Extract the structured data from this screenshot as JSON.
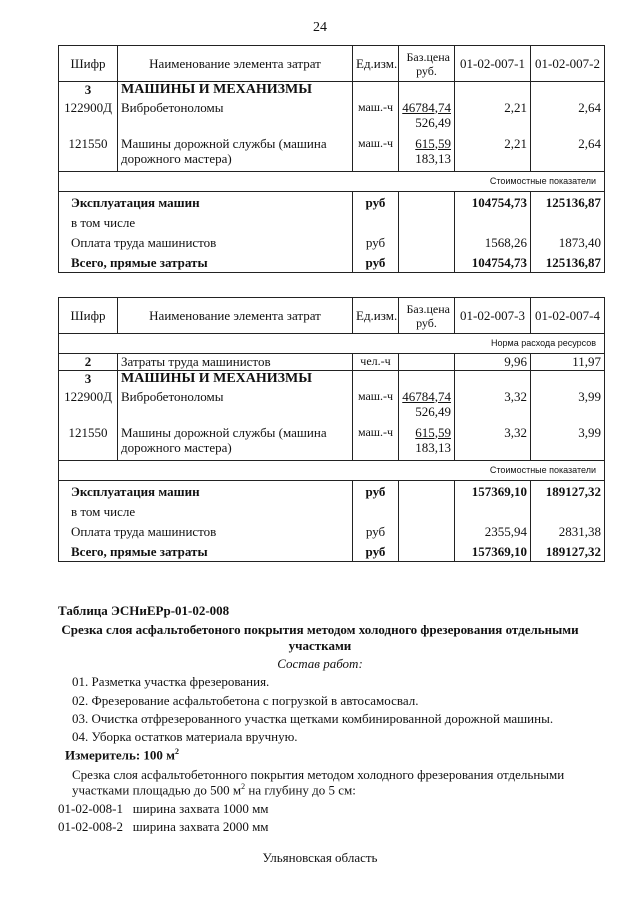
{
  "page_number": "24",
  "tables": [
    {
      "header": {
        "code": "Шифр",
        "name": "Наименование элемента затрат",
        "unit": "Ед.изм.",
        "price": "Баз.цена руб.",
        "cols": [
          "01-02-007-1",
          "01-02-007-2"
        ]
      },
      "rows": [
        {
          "type": "group",
          "code": "3",
          "name": "МАШИНЫ И МЕХАНИЗМЫ"
        },
        {
          "type": "item",
          "code": "122900Д",
          "name": "Вибробетоноломы",
          "unit": "маш.-ч",
          "price": "46784,74",
          "price2": "526,49",
          "v": [
            "2,21",
            "2,64"
          ]
        },
        {
          "type": "item",
          "code": "121550",
          "name": "Машины дорожной службы (машина дорожного мастера)",
          "unit": "маш.-ч",
          "price": "615,59",
          "price2": "183,13",
          "v": [
            "2,21",
            "2,64"
          ]
        },
        {
          "type": "section",
          "label": "Стоимостные показатели"
        },
        {
          "type": "total",
          "bold": true,
          "name": "Эксплуатация машин",
          "unit": "руб",
          "v": [
            "104754,73",
            "125136,87"
          ]
        },
        {
          "type": "total",
          "bold": false,
          "name": "в том числе",
          "unit": "",
          "v": [
            "",
            ""
          ]
        },
        {
          "type": "total",
          "bold": false,
          "name": "Оплата труда машинистов",
          "unit": "руб",
          "v": [
            "1568,26",
            "1873,40"
          ]
        },
        {
          "type": "total",
          "bold": true,
          "name": "Всего, прямые затраты",
          "unit": "руб",
          "v": [
            "104754,73",
            "125136,87"
          ]
        }
      ]
    },
    {
      "header": {
        "code": "Шифр",
        "name": "Наименование элемента затрат",
        "unit": "Ед.изм.",
        "price": "Баз.цена руб.",
        "cols": [
          "01-02-007-3",
          "01-02-007-4"
        ]
      },
      "rows": [
        {
          "type": "section",
          "label": "Норма расхода ресурсов"
        },
        {
          "type": "item",
          "single": true,
          "boldcode": true,
          "code": "2",
          "name": "Затраты труда машинистов",
          "unit": "чел.-ч",
          "price": "",
          "price2": "",
          "v": [
            "9,96",
            "11,97"
          ]
        },
        {
          "type": "group",
          "code": "3",
          "name": "МАШИНЫ И МЕХАНИЗМЫ"
        },
        {
          "type": "item",
          "code": "122900Д",
          "name": "Вибробетоноломы",
          "unit": "маш.-ч",
          "price": "46784,74",
          "price2": "526,49",
          "v": [
            "3,32",
            "3,99"
          ]
        },
        {
          "type": "item",
          "code": "121550",
          "name": "Машины дорожной службы (машина дорожного мастера)",
          "unit": "маш.-ч",
          "price": "615,59",
          "price2": "183,13",
          "v": [
            "3,32",
            "3,99"
          ]
        },
        {
          "type": "section",
          "label": "Стоимостные показатели"
        },
        {
          "type": "total",
          "bold": true,
          "name": "Эксплуатация машин",
          "unit": "руб",
          "v": [
            "157369,10",
            "189127,32"
          ]
        },
        {
          "type": "total",
          "bold": false,
          "name": "в том числе",
          "unit": "",
          "v": [
            "",
            ""
          ]
        },
        {
          "type": "total",
          "bold": false,
          "name": "Оплата труда машинистов",
          "unit": "руб",
          "v": [
            "2355,94",
            "2831,38"
          ]
        },
        {
          "type": "total",
          "bold": true,
          "name": "Всего, прямые затраты",
          "unit": "руб",
          "v": [
            "157369,10",
            "189127,32"
          ]
        }
      ]
    }
  ],
  "section": {
    "table_id": "Таблица  ЭСНиЕРр-01-02-008",
    "title_line1": "Срезка слоя асфальтобетоного покрытия методом холодного фрезерования отдельными",
    "title_line2": "участками",
    "works_heading": "Состав работ:",
    "works": [
      "01. Разметка участка фрезерования.",
      "02. Фрезерование асфальтобетона с погрузкой в автосамосвал.",
      "03. Очистка отфрезерованного участка щетками комбинированной дорожной машины.",
      "04. Уборка остатков материала вручную."
    ],
    "measure_label": "Измеритель: 100 м",
    "measure_sup": "2",
    "desc_line1": "Срезка слоя асфальтобетонного покрытия методом холодного фрезерования отдельными",
    "desc_line2_a": "участками площадью до 500 м",
    "desc_line2_sup": "2",
    "desc_line2_b": " на глубину до  5 см:",
    "codes": [
      {
        "code": "01-02-008-1",
        "text": "ширина захвата 1000 мм"
      },
      {
        "code": "01-02-008-2",
        "text": "ширина захвата 2000 мм"
      }
    ]
  },
  "footer": "Ульяновская область"
}
